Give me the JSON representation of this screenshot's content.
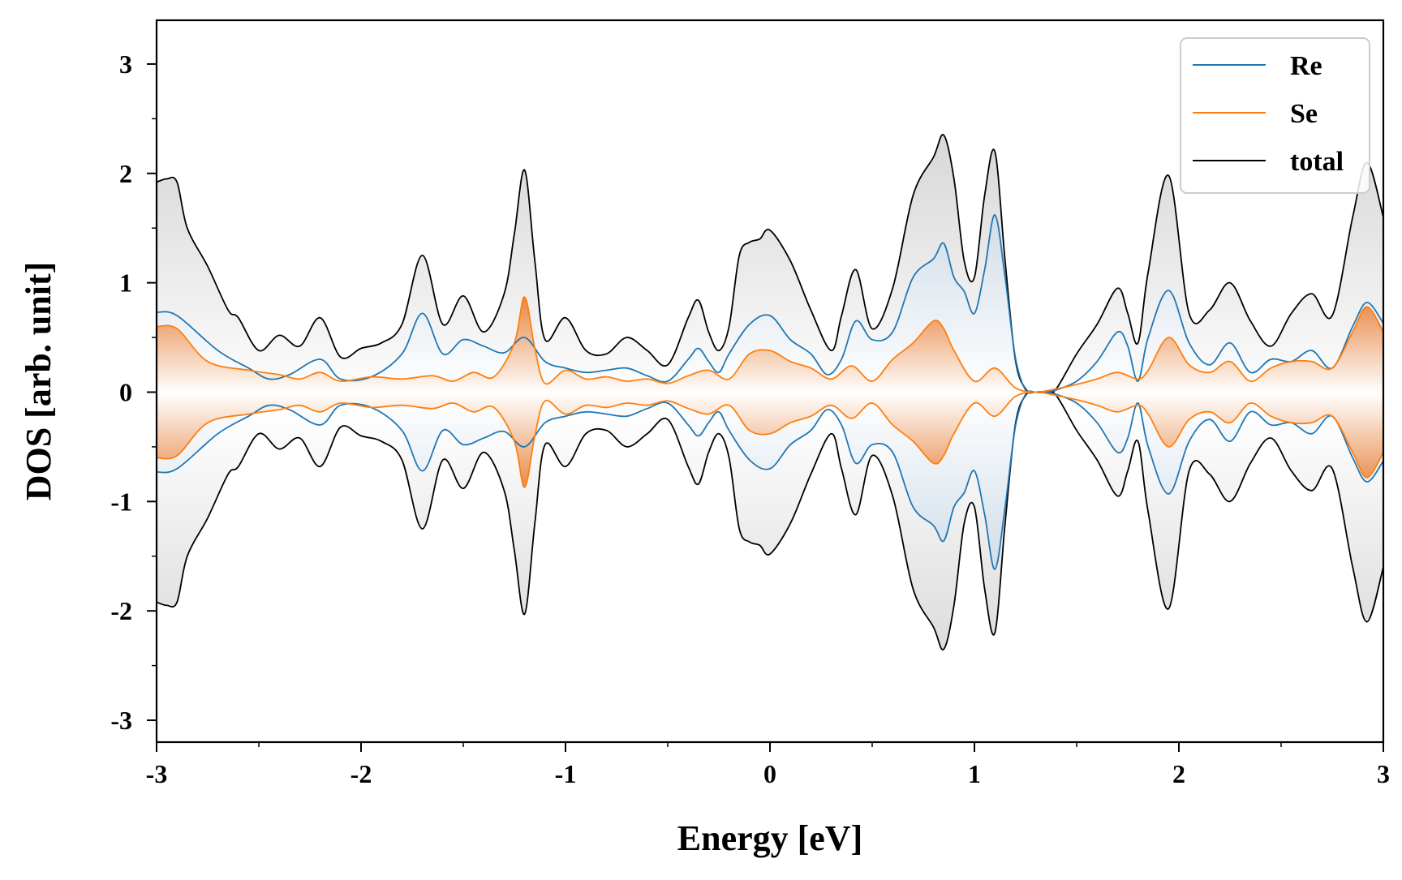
{
  "chart_data": {
    "type": "line",
    "title": "",
    "xlabel": "Energy [eV]",
    "ylabel": "DOS [arb. unit]",
    "xlim": [
      -3,
      3
    ],
    "ylim": [
      -3.2,
      3.4
    ],
    "xticks": [
      -3,
      -2,
      -1,
      0,
      1,
      2,
      3
    ],
    "yticks": [
      -3,
      -2,
      -1,
      0,
      1,
      2,
      3
    ],
    "xtick_labels": [
      "-3",
      "-2",
      "-1",
      "0",
      "1",
      "2",
      "3"
    ],
    "ytick_labels": [
      "-3",
      "-2",
      "-1",
      "0",
      "1",
      "2",
      "3"
    ],
    "legend_position": "top-right",
    "mirror_negative": true,
    "series": [
      {
        "name": "Re",
        "color": "#1f77b4",
        "x": [
          -3.0,
          -2.9,
          -2.7,
          -2.55,
          -2.45,
          -2.35,
          -2.2,
          -2.1,
          -1.95,
          -1.8,
          -1.7,
          -1.6,
          -1.5,
          -1.4,
          -1.3,
          -1.2,
          -1.1,
          -1.0,
          -0.9,
          -0.8,
          -0.7,
          -0.6,
          -0.5,
          -0.4,
          -0.35,
          -0.3,
          -0.25,
          -0.2,
          -0.1,
          0.0,
          0.1,
          0.2,
          0.28,
          0.35,
          0.42,
          0.5,
          0.6,
          0.7,
          0.8,
          0.85,
          0.9,
          0.95,
          1.0,
          1.05,
          1.1,
          1.15,
          1.2,
          1.25,
          1.3,
          1.35,
          1.4,
          1.5,
          1.6,
          1.7,
          1.75,
          1.8,
          1.85,
          1.95,
          2.05,
          2.15,
          2.25,
          2.35,
          2.45,
          2.55,
          2.65,
          2.75,
          2.85,
          2.92,
          3.0
        ],
        "values": [
          0.73,
          0.7,
          0.38,
          0.22,
          0.12,
          0.16,
          0.3,
          0.12,
          0.14,
          0.35,
          0.72,
          0.35,
          0.48,
          0.42,
          0.36,
          0.5,
          0.28,
          0.22,
          0.18,
          0.2,
          0.22,
          0.15,
          0.1,
          0.3,
          0.4,
          0.28,
          0.18,
          0.35,
          0.62,
          0.7,
          0.48,
          0.35,
          0.16,
          0.3,
          0.65,
          0.48,
          0.55,
          1.05,
          1.22,
          1.36,
          1.05,
          0.92,
          0.72,
          1.12,
          1.62,
          1.05,
          0.32,
          0.02,
          0.0,
          0.0,
          0.02,
          0.1,
          0.28,
          0.55,
          0.42,
          0.1,
          0.5,
          0.93,
          0.45,
          0.25,
          0.45,
          0.18,
          0.3,
          0.28,
          0.38,
          0.22,
          0.6,
          0.82,
          0.63
        ]
      },
      {
        "name": "Se",
        "color": "#ff7f0e",
        "x": [
          -3.0,
          -2.9,
          -2.75,
          -2.55,
          -2.4,
          -2.3,
          -2.2,
          -2.1,
          -1.95,
          -1.8,
          -1.65,
          -1.55,
          -1.45,
          -1.35,
          -1.25,
          -1.2,
          -1.15,
          -1.1,
          -1.0,
          -0.9,
          -0.8,
          -0.7,
          -0.6,
          -0.5,
          -0.4,
          -0.3,
          -0.2,
          -0.1,
          0.0,
          0.1,
          0.2,
          0.3,
          0.4,
          0.5,
          0.6,
          0.7,
          0.8,
          0.85,
          0.9,
          1.0,
          1.1,
          1.2,
          1.3,
          1.4,
          1.5,
          1.6,
          1.7,
          1.8,
          1.85,
          1.95,
          2.05,
          2.15,
          2.25,
          2.35,
          2.45,
          2.55,
          2.65,
          2.75,
          2.85,
          2.92,
          3.0
        ],
        "values": [
          0.6,
          0.58,
          0.28,
          0.2,
          0.16,
          0.12,
          0.18,
          0.1,
          0.14,
          0.12,
          0.15,
          0.1,
          0.18,
          0.14,
          0.45,
          0.87,
          0.4,
          0.08,
          0.2,
          0.12,
          0.14,
          0.1,
          0.12,
          0.08,
          0.15,
          0.2,
          0.12,
          0.35,
          0.38,
          0.28,
          0.22,
          0.12,
          0.24,
          0.1,
          0.3,
          0.45,
          0.65,
          0.58,
          0.38,
          0.1,
          0.22,
          0.04,
          0.0,
          0.03,
          0.07,
          0.12,
          0.18,
          0.12,
          0.2,
          0.5,
          0.25,
          0.18,
          0.28,
          0.1,
          0.22,
          0.28,
          0.28,
          0.22,
          0.55,
          0.78,
          0.55
        ]
      },
      {
        "name": "total",
        "color": "#000000",
        "x": [
          -3.0,
          -2.95,
          -2.9,
          -2.85,
          -2.75,
          -2.65,
          -2.6,
          -2.5,
          -2.4,
          -2.3,
          -2.2,
          -2.1,
          -2.0,
          -1.9,
          -1.8,
          -1.7,
          -1.6,
          -1.5,
          -1.4,
          -1.3,
          -1.25,
          -1.2,
          -1.15,
          -1.1,
          -1.0,
          -0.9,
          -0.8,
          -0.7,
          -0.6,
          -0.5,
          -0.4,
          -0.35,
          -0.3,
          -0.25,
          -0.2,
          -0.15,
          -0.1,
          -0.05,
          0.0,
          0.1,
          0.2,
          0.3,
          0.35,
          0.42,
          0.5,
          0.6,
          0.7,
          0.8,
          0.85,
          0.9,
          0.95,
          1.0,
          1.05,
          1.1,
          1.15,
          1.2,
          1.25,
          1.3,
          1.35,
          1.4,
          1.5,
          1.6,
          1.7,
          1.75,
          1.8,
          1.85,
          1.95,
          2.05,
          2.15,
          2.25,
          2.35,
          2.45,
          2.55,
          2.65,
          2.75,
          2.85,
          2.92,
          3.0
        ],
        "values": [
          1.92,
          1.95,
          1.92,
          1.5,
          1.15,
          0.75,
          0.68,
          0.38,
          0.52,
          0.42,
          0.68,
          0.32,
          0.4,
          0.45,
          0.62,
          1.25,
          0.62,
          0.88,
          0.55,
          0.9,
          1.45,
          2.03,
          1.2,
          0.48,
          0.68,
          0.38,
          0.35,
          0.5,
          0.38,
          0.25,
          0.68,
          0.84,
          0.55,
          0.38,
          0.6,
          1.25,
          1.37,
          1.4,
          1.48,
          1.2,
          0.75,
          0.38,
          0.7,
          1.12,
          0.58,
          0.95,
          1.8,
          2.15,
          2.35,
          1.95,
          1.2,
          1.05,
          1.8,
          2.2,
          1.2,
          0.3,
          0.03,
          0.0,
          0.0,
          0.03,
          0.35,
          0.62,
          0.95,
          0.72,
          0.45,
          1.1,
          1.98,
          0.72,
          0.75,
          1.0,
          0.65,
          0.42,
          0.72,
          0.9,
          0.7,
          1.6,
          2.1,
          1.6
        ]
      }
    ]
  }
}
